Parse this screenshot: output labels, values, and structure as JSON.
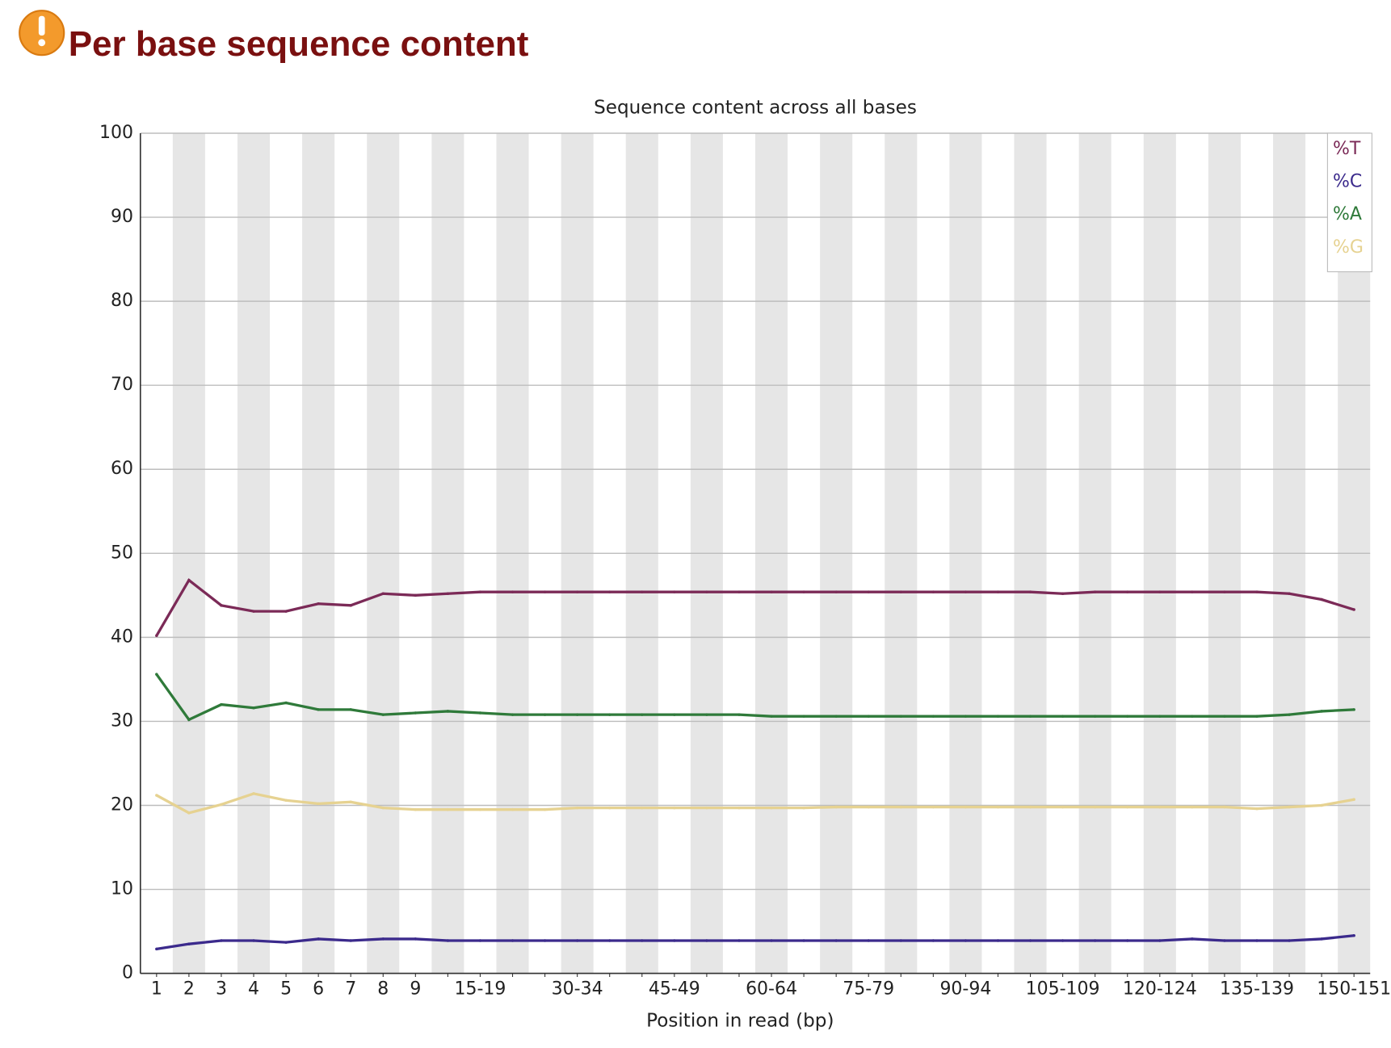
{
  "heading": "Per base sequence content",
  "chart_data": {
    "type": "line",
    "title": "Sequence content across all bases",
    "x_label": "Position in read (bp)",
    "categories": [
      "1",
      "2",
      "3",
      "4",
      "5",
      "6",
      "7",
      "8",
      "9",
      null,
      "15-19",
      null,
      null,
      "30-34",
      null,
      null,
      "45-49",
      null,
      null,
      "60-64",
      null,
      null,
      "75-79",
      null,
      null,
      "90-94",
      null,
      null,
      "105-109",
      null,
      null,
      "120-124",
      null,
      null,
      "135-139",
      null,
      null,
      "150-151"
    ],
    "ylim": [
      0,
      100
    ],
    "yticks": [
      0,
      10,
      20,
      30,
      40,
      50,
      60,
      70,
      80,
      90,
      100
    ],
    "grid": true,
    "legend": "top-right",
    "series": [
      {
        "name": "%T",
        "color": "#7b2a57",
        "values": [
          40.2,
          46.8,
          43.8,
          43.1,
          43.1,
          44.0,
          43.8,
          45.2,
          45.0,
          45.2,
          45.4,
          45.4,
          45.4,
          45.4,
          45.4,
          45.4,
          45.4,
          45.4,
          45.4,
          45.4,
          45.4,
          45.4,
          45.4,
          45.4,
          45.4,
          45.4,
          45.4,
          45.4,
          45.2,
          45.4,
          45.4,
          45.4,
          45.4,
          45.4,
          45.4,
          45.2,
          44.5,
          43.3
        ]
      },
      {
        "name": "%C",
        "color": "#3b2a8c",
        "values": [
          2.9,
          3.5,
          3.9,
          3.9,
          3.7,
          4.1,
          3.9,
          4.1,
          4.1,
          3.9,
          3.9,
          3.9,
          3.9,
          3.9,
          3.9,
          3.9,
          3.9,
          3.9,
          3.9,
          3.9,
          3.9,
          3.9,
          3.9,
          3.9,
          3.9,
          3.9,
          3.9,
          3.9,
          3.9,
          3.9,
          3.9,
          3.9,
          4.1,
          3.9,
          3.9,
          3.9,
          4.1,
          4.5
        ]
      },
      {
        "name": "%A",
        "color": "#2f7a3a",
        "values": [
          35.6,
          30.2,
          32.0,
          31.6,
          32.2,
          31.4,
          31.4,
          30.8,
          31.0,
          31.2,
          31.0,
          30.8,
          30.8,
          30.8,
          30.8,
          30.8,
          30.8,
          30.8,
          30.8,
          30.6,
          30.6,
          30.6,
          30.6,
          30.6,
          30.6,
          30.6,
          30.6,
          30.6,
          30.6,
          30.6,
          30.6,
          30.6,
          30.6,
          30.6,
          30.6,
          30.8,
          31.2,
          31.4
        ]
      },
      {
        "name": "%G",
        "color": "#e6d291",
        "values": [
          21.2,
          19.1,
          20.1,
          21.4,
          20.6,
          20.2,
          20.4,
          19.7,
          19.5,
          19.5,
          19.5,
          19.5,
          19.5,
          19.7,
          19.7,
          19.7,
          19.7,
          19.7,
          19.7,
          19.7,
          19.7,
          19.8,
          19.8,
          19.8,
          19.8,
          19.8,
          19.8,
          19.8,
          19.8,
          19.8,
          19.8,
          19.8,
          19.8,
          19.8,
          19.6,
          19.8,
          20.0,
          20.7
        ]
      }
    ]
  }
}
